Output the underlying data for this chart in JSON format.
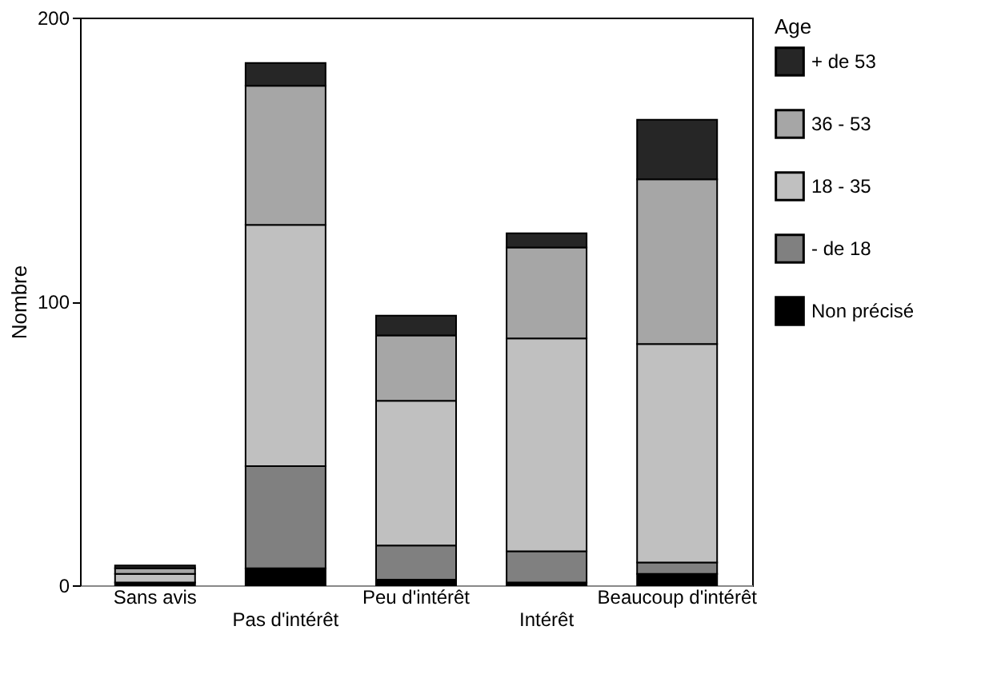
{
  "chart_data": {
    "type": "bar",
    "stacked": true,
    "ylabel": "Nombre",
    "legend_title": "Age",
    "legend": "right",
    "grid": false,
    "categories": [
      "Sans avis",
      "Pas d'intérêt",
      "Peu d'intérêt",
      "Intérêt",
      "Beaucoup d'intérêt"
    ],
    "ylim": [
      0,
      200
    ],
    "yticks": [
      0,
      100,
      200
    ],
    "series": [
      {
        "name": "Non précisé",
        "color": "#000000",
        "values": [
          1,
          6,
          2,
          1,
          4
        ]
      },
      {
        "name": "- de 18",
        "color": "#808080",
        "values": [
          0,
          36,
          12,
          11,
          4
        ]
      },
      {
        "name": "18 - 35",
        "color": "#c0c0c0",
        "values": [
          3,
          85,
          51,
          75,
          77
        ]
      },
      {
        "name": "36 - 53",
        "color": "#a6a6a6",
        "values": [
          2,
          49,
          23,
          32,
          58
        ]
      },
      {
        "name": "+ de 53",
        "color": "#262626",
        "values": [
          1,
          8,
          7,
          5,
          21
        ]
      }
    ]
  }
}
